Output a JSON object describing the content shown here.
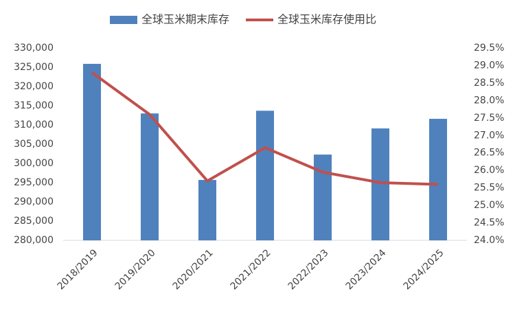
{
  "chart_data": {
    "type": "bar",
    "categories": [
      "2018/2019",
      "2019/2020",
      "2020/2021",
      "2021/2022",
      "2022/2023",
      "2023/2024",
      "2024/2025"
    ],
    "series": [
      {
        "name": "全球玉米期末库存",
        "type": "bar",
        "color": "#4f81bd",
        "values": [
          325900,
          313000,
          295700,
          313700,
          302300,
          309100,
          311600
        ]
      },
      {
        "name": "全球玉米库存使用比",
        "type": "line",
        "axis": "y2",
        "color": "#c0504d",
        "values": [
          28.8,
          27.6,
          25.7,
          26.65,
          25.95,
          25.65,
          25.6
        ]
      }
    ],
    "ylim": [
      280000,
      330000
    ],
    "yticks": [
      {
        "value": 280000,
        "label": "280,000"
      },
      {
        "value": 285000,
        "label": "285,000"
      },
      {
        "value": 290000,
        "label": "290,000"
      },
      {
        "value": 295000,
        "label": "295,000"
      },
      {
        "value": 300000,
        "label": "300,000"
      },
      {
        "value": 305000,
        "label": "305,000"
      },
      {
        "value": 310000,
        "label": "310,000"
      },
      {
        "value": 315000,
        "label": "315,000"
      },
      {
        "value": 320000,
        "label": "320,000"
      },
      {
        "value": 325000,
        "label": "325,000"
      },
      {
        "value": 330000,
        "label": "330,000"
      }
    ],
    "y2lim": [
      24,
      29.5
    ],
    "y2ticks": [
      {
        "value": 24,
        "label": "24.0%"
      },
      {
        "value": 24.5,
        "label": "24.5%"
      },
      {
        "value": 25,
        "label": "25.0%"
      },
      {
        "value": 25.5,
        "label": "25.5%"
      },
      {
        "value": 26,
        "label": "26.0%"
      },
      {
        "value": 26.5,
        "label": "26.5%"
      },
      {
        "value": 27,
        "label": "27.0%"
      },
      {
        "value": 27.5,
        "label": "27.5%"
      },
      {
        "value": 28,
        "label": "28.0%"
      },
      {
        "value": 28.5,
        "label": "28.5%"
      },
      {
        "value": 29,
        "label": "29.0%"
      },
      {
        "value": 29.5,
        "label": "29.5%"
      }
    ],
    "grid": false,
    "legend": "top"
  }
}
